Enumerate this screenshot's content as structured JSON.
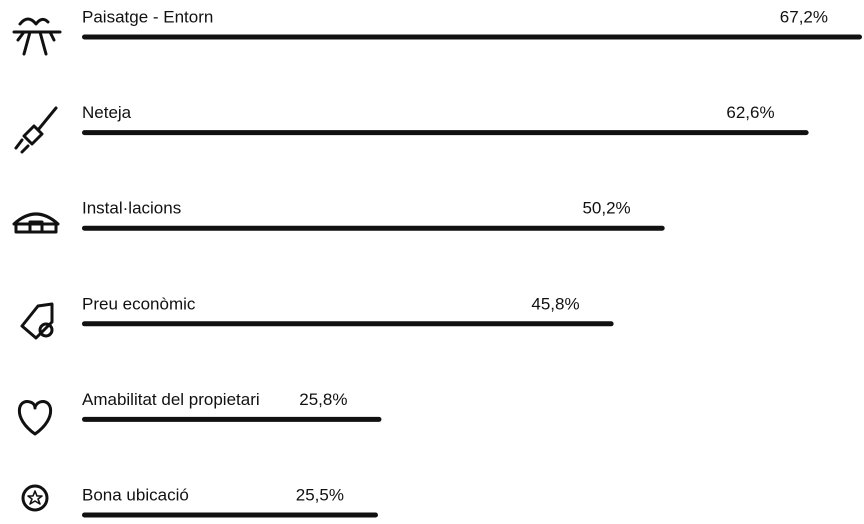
{
  "chart_data": {
    "type": "bar",
    "orientation": "horizontal",
    "categories": [
      "Paisatge - Entorn",
      "Neteja",
      "Instal·lacions",
      "Preu econòmic",
      "Amabilitat del propietari",
      "Bona ubicació"
    ],
    "values": [
      67.2,
      62.6,
      50.2,
      45.8,
      25.8,
      25.5
    ],
    "value_labels": [
      "67,2%",
      "62,6%",
      "50,2%",
      "45,8%",
      "25,8%",
      "25,5%"
    ],
    "color": "#111111"
  }
}
